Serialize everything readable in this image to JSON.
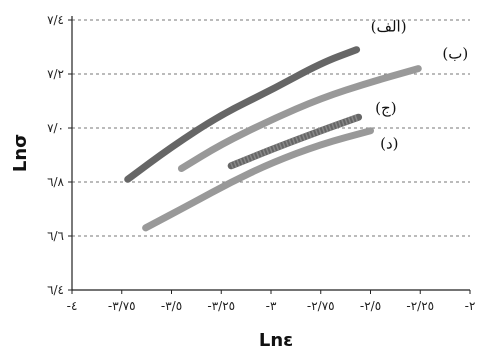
{
  "chart_data": {
    "type": "line",
    "xlabel": "Lnε",
    "ylabel": "Lnσ",
    "xlim": [
      -4,
      -2
    ],
    "ylim": [
      6.4,
      7.4
    ],
    "grid": "horizontal dashed",
    "x_ticks": [
      -4,
      -3.75,
      -3.5,
      -3.25,
      -3,
      -2.75,
      -2.5,
      -2.25,
      -2
    ],
    "x_tick_labels": [
      "-٤",
      "-٣/٧٥",
      "-٣/٥",
      "-٣/٢٥",
      "-٣",
      "-٢/٧٥",
      "-٢/٥",
      "-٢/٢٥",
      "-٢"
    ],
    "y_ticks": [
      6.4,
      6.6,
      6.8,
      7.0,
      7.2,
      7.4
    ],
    "y_tick_labels": [
      "٦/٤",
      "٦/٦",
      "٦/٨",
      "٧/٠",
      "٧/٢",
      "٧/٤"
    ],
    "series": [
      {
        "name": "(الف)",
        "color": "#666666",
        "points": [
          [
            -3.72,
            6.81
          ],
          [
            -3.5,
            6.93
          ],
          [
            -3.25,
            7.05
          ],
          [
            -3.0,
            7.14
          ],
          [
            -2.75,
            7.24
          ],
          [
            -2.57,
            7.29
          ]
        ]
      },
      {
        "name": "(ب)",
        "color": "#999999",
        "points": [
          [
            -3.45,
            6.85
          ],
          [
            -3.25,
            6.94
          ],
          [
            -3.0,
            7.03
          ],
          [
            -2.75,
            7.11
          ],
          [
            -2.5,
            7.17
          ],
          [
            -2.26,
            7.22
          ]
        ]
      },
      {
        "name": "(ج)",
        "color": "#666666",
        "points": [
          [
            -3.2,
            6.86
          ],
          [
            -3.0,
            6.92
          ],
          [
            -2.75,
            6.99
          ],
          [
            -2.56,
            7.04
          ]
        ]
      },
      {
        "name": "(د)",
        "color": "#999999",
        "points": [
          [
            -3.63,
            6.63
          ],
          [
            -3.4,
            6.72
          ],
          [
            -3.2,
            6.8
          ],
          [
            -3.0,
            6.87
          ],
          [
            -2.75,
            6.94
          ],
          [
            -2.5,
            6.99
          ]
        ]
      }
    ]
  }
}
